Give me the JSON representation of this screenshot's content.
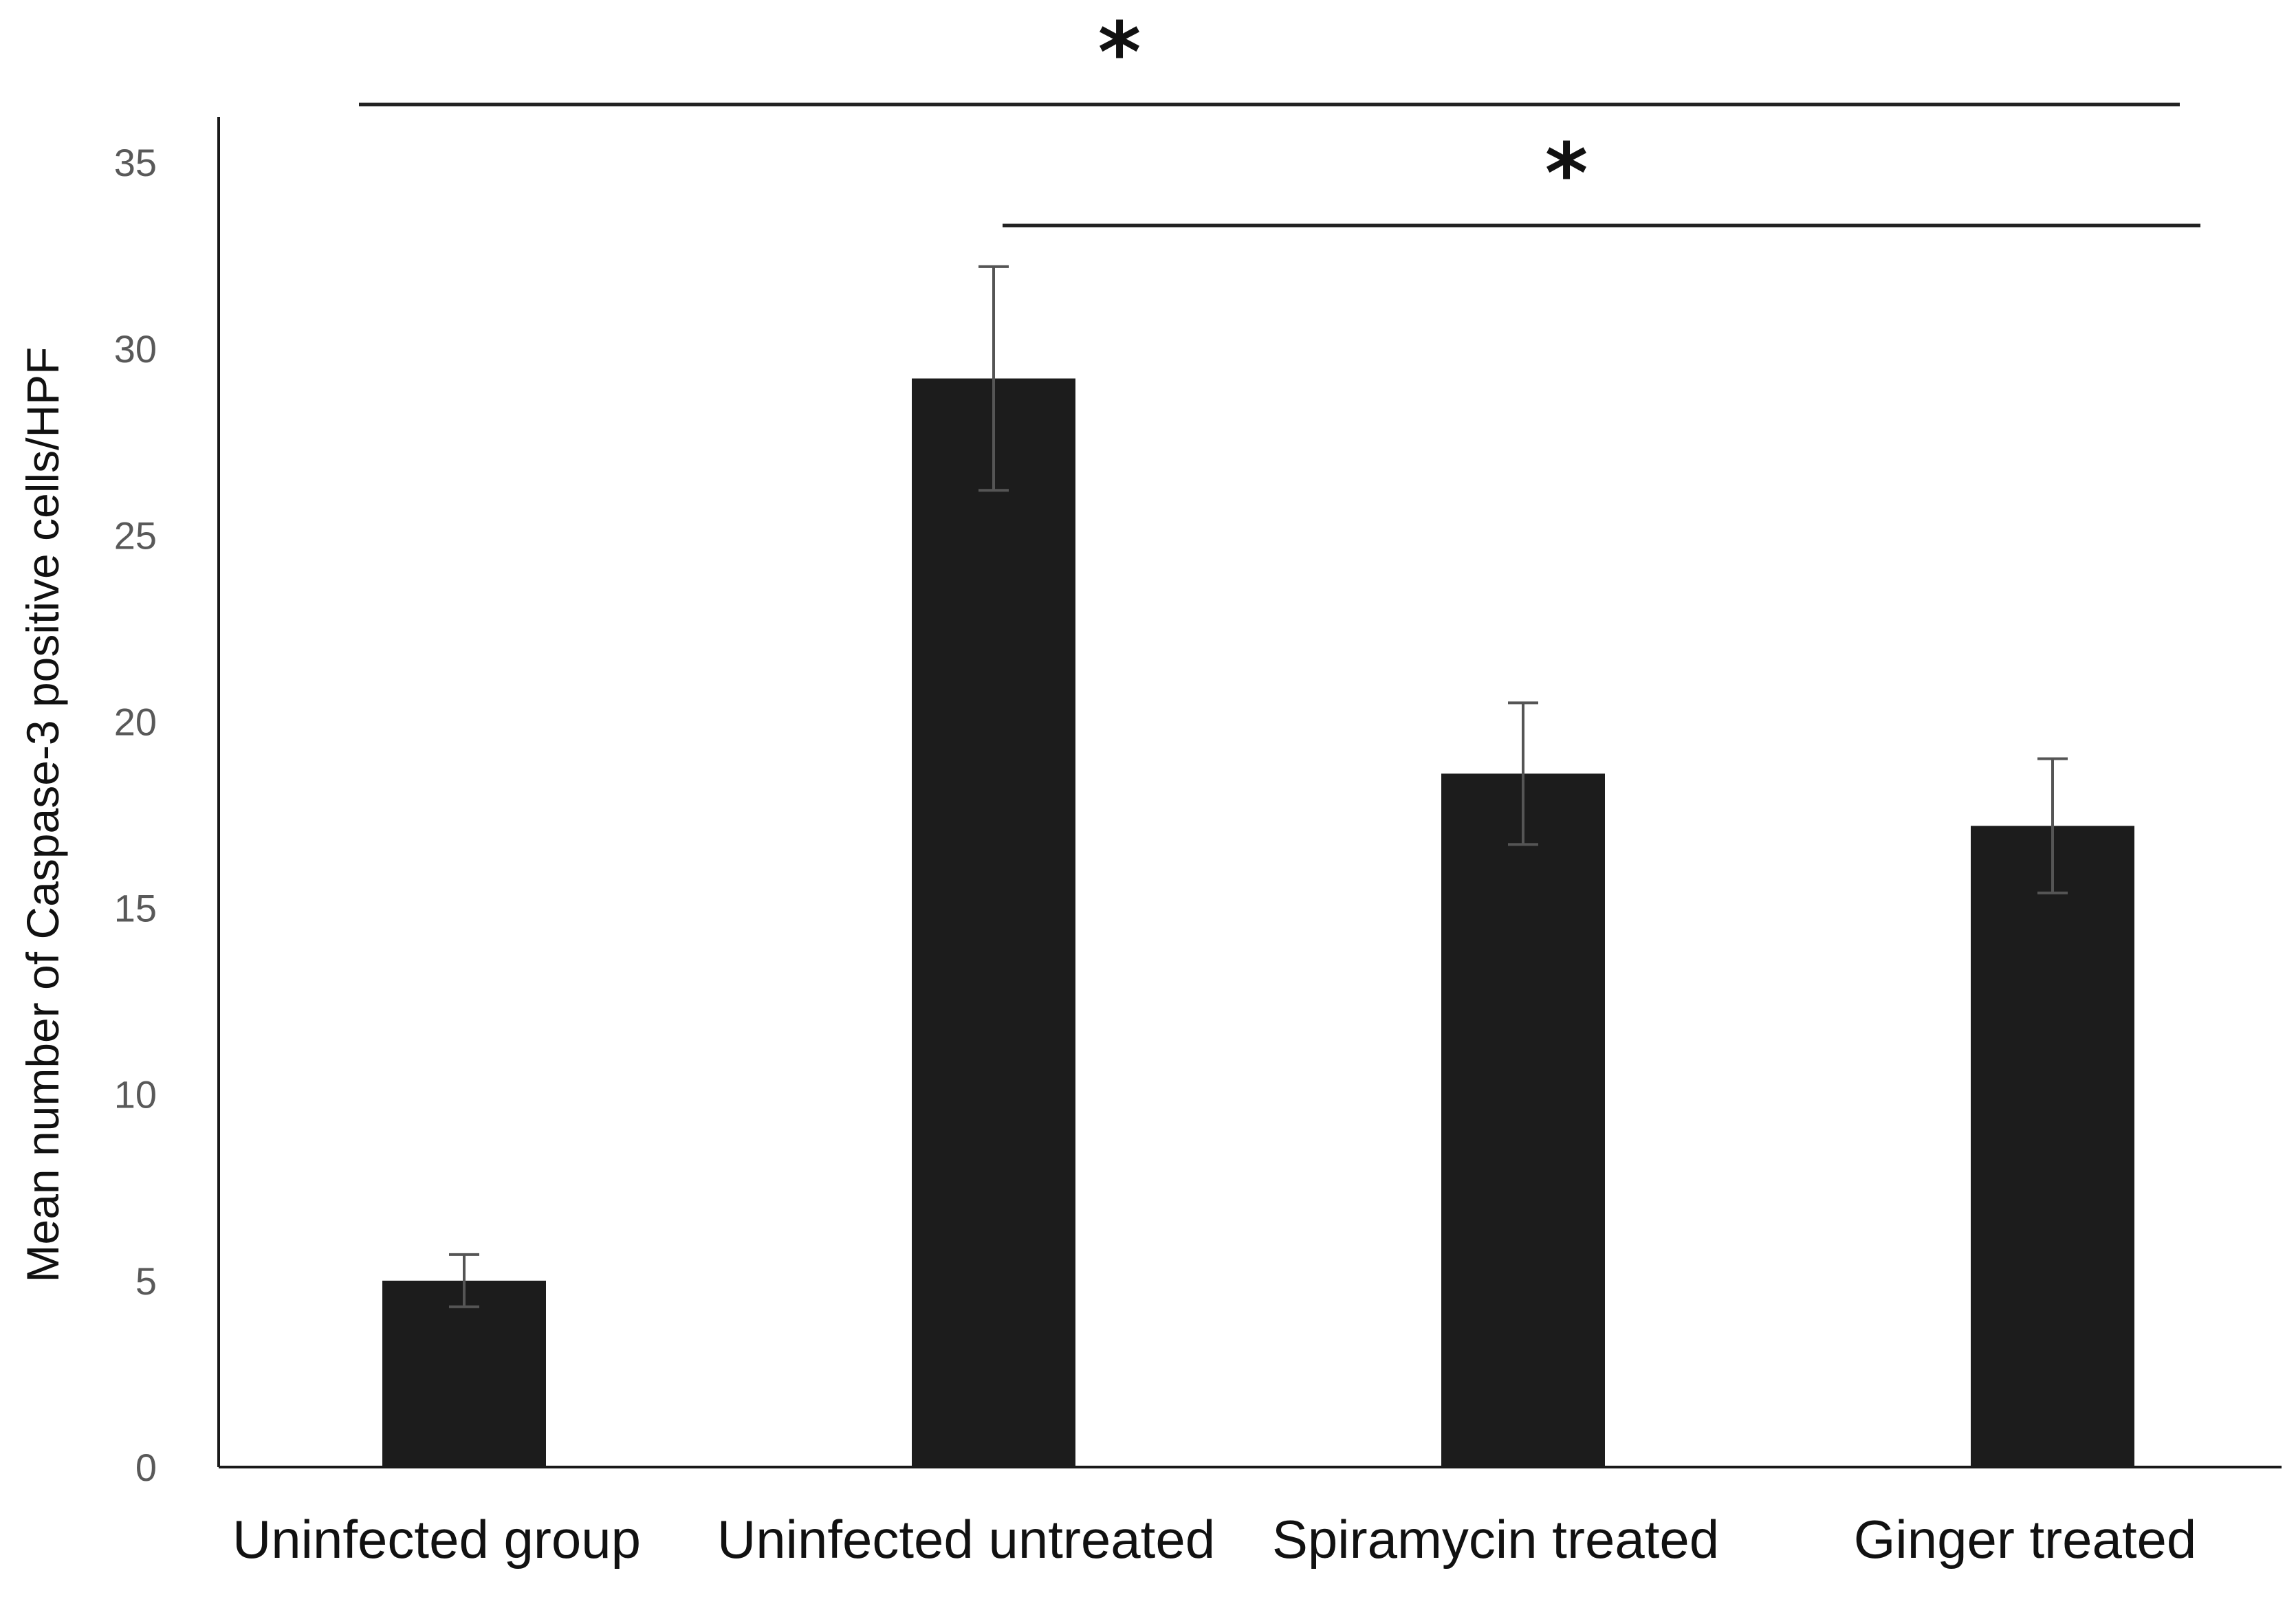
{
  "chart_data": {
    "type": "bar",
    "title": "",
    "xlabel": "",
    "ylabel": "Mean number of Caspase-3 positive cells/HPF",
    "ylim": [
      0,
      35
    ],
    "yticks": [
      0,
      5,
      10,
      15,
      20,
      25,
      30,
      35
    ],
    "categories": [
      "Uninfected group",
      "Uninfected untreated",
      "Spiramycin treated",
      "Ginger treated"
    ],
    "values": [
      5.0,
      29.2,
      18.6,
      17.2
    ],
    "error": [
      0.7,
      3.0,
      1.9,
      1.8
    ],
    "bar_color": "#1c1c1c",
    "significance": [
      {
        "from": 0,
        "to": 3,
        "label": "*"
      },
      {
        "from": 1,
        "to": 3,
        "label": "*"
      }
    ],
    "grid": false
  }
}
